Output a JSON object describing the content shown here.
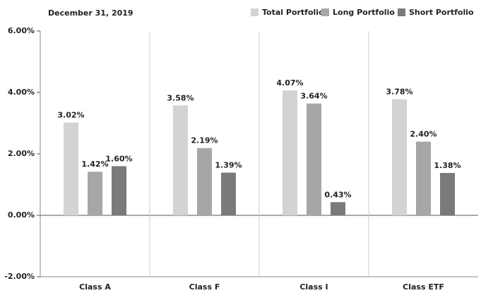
{
  "chart_data": {
    "type": "bar",
    "title": "December 31, 2019",
    "categories": [
      "Class A",
      "Class F",
      "Class I",
      "Class ETF"
    ],
    "series": [
      {
        "name": "Total Portfolio",
        "color": "#d3d3d4",
        "values": [
          3.02,
          3.58,
          4.07,
          3.78
        ],
        "value_labels": [
          "3.02%",
          "3.58%",
          "4.07%",
          "3.78%"
        ]
      },
      {
        "name": "Long Portfolio",
        "color": "#a6a6a8",
        "values": [
          1.42,
          2.19,
          3.64,
          2.4
        ],
        "value_labels": [
          "1.42%",
          "2.19%",
          "3.64%",
          "2.40%"
        ]
      },
      {
        "name": "Short Portfolio",
        "color": "#7a7a7c",
        "values": [
          1.6,
          1.39,
          0.43,
          1.38
        ],
        "value_labels": [
          "1.60%",
          "1.39%",
          "0.43%",
          "1.38%"
        ]
      }
    ],
    "ylim": [
      -2,
      6
    ],
    "yticks": [
      {
        "value": -2,
        "label": "-2.00%"
      },
      {
        "value": 0,
        "label": "0.00%"
      },
      {
        "value": 2,
        "label": "2.00%"
      },
      {
        "value": 4,
        "label": "4.00%"
      },
      {
        "value": 6,
        "label": "6.00%"
      }
    ],
    "legend": "top-right"
  }
}
